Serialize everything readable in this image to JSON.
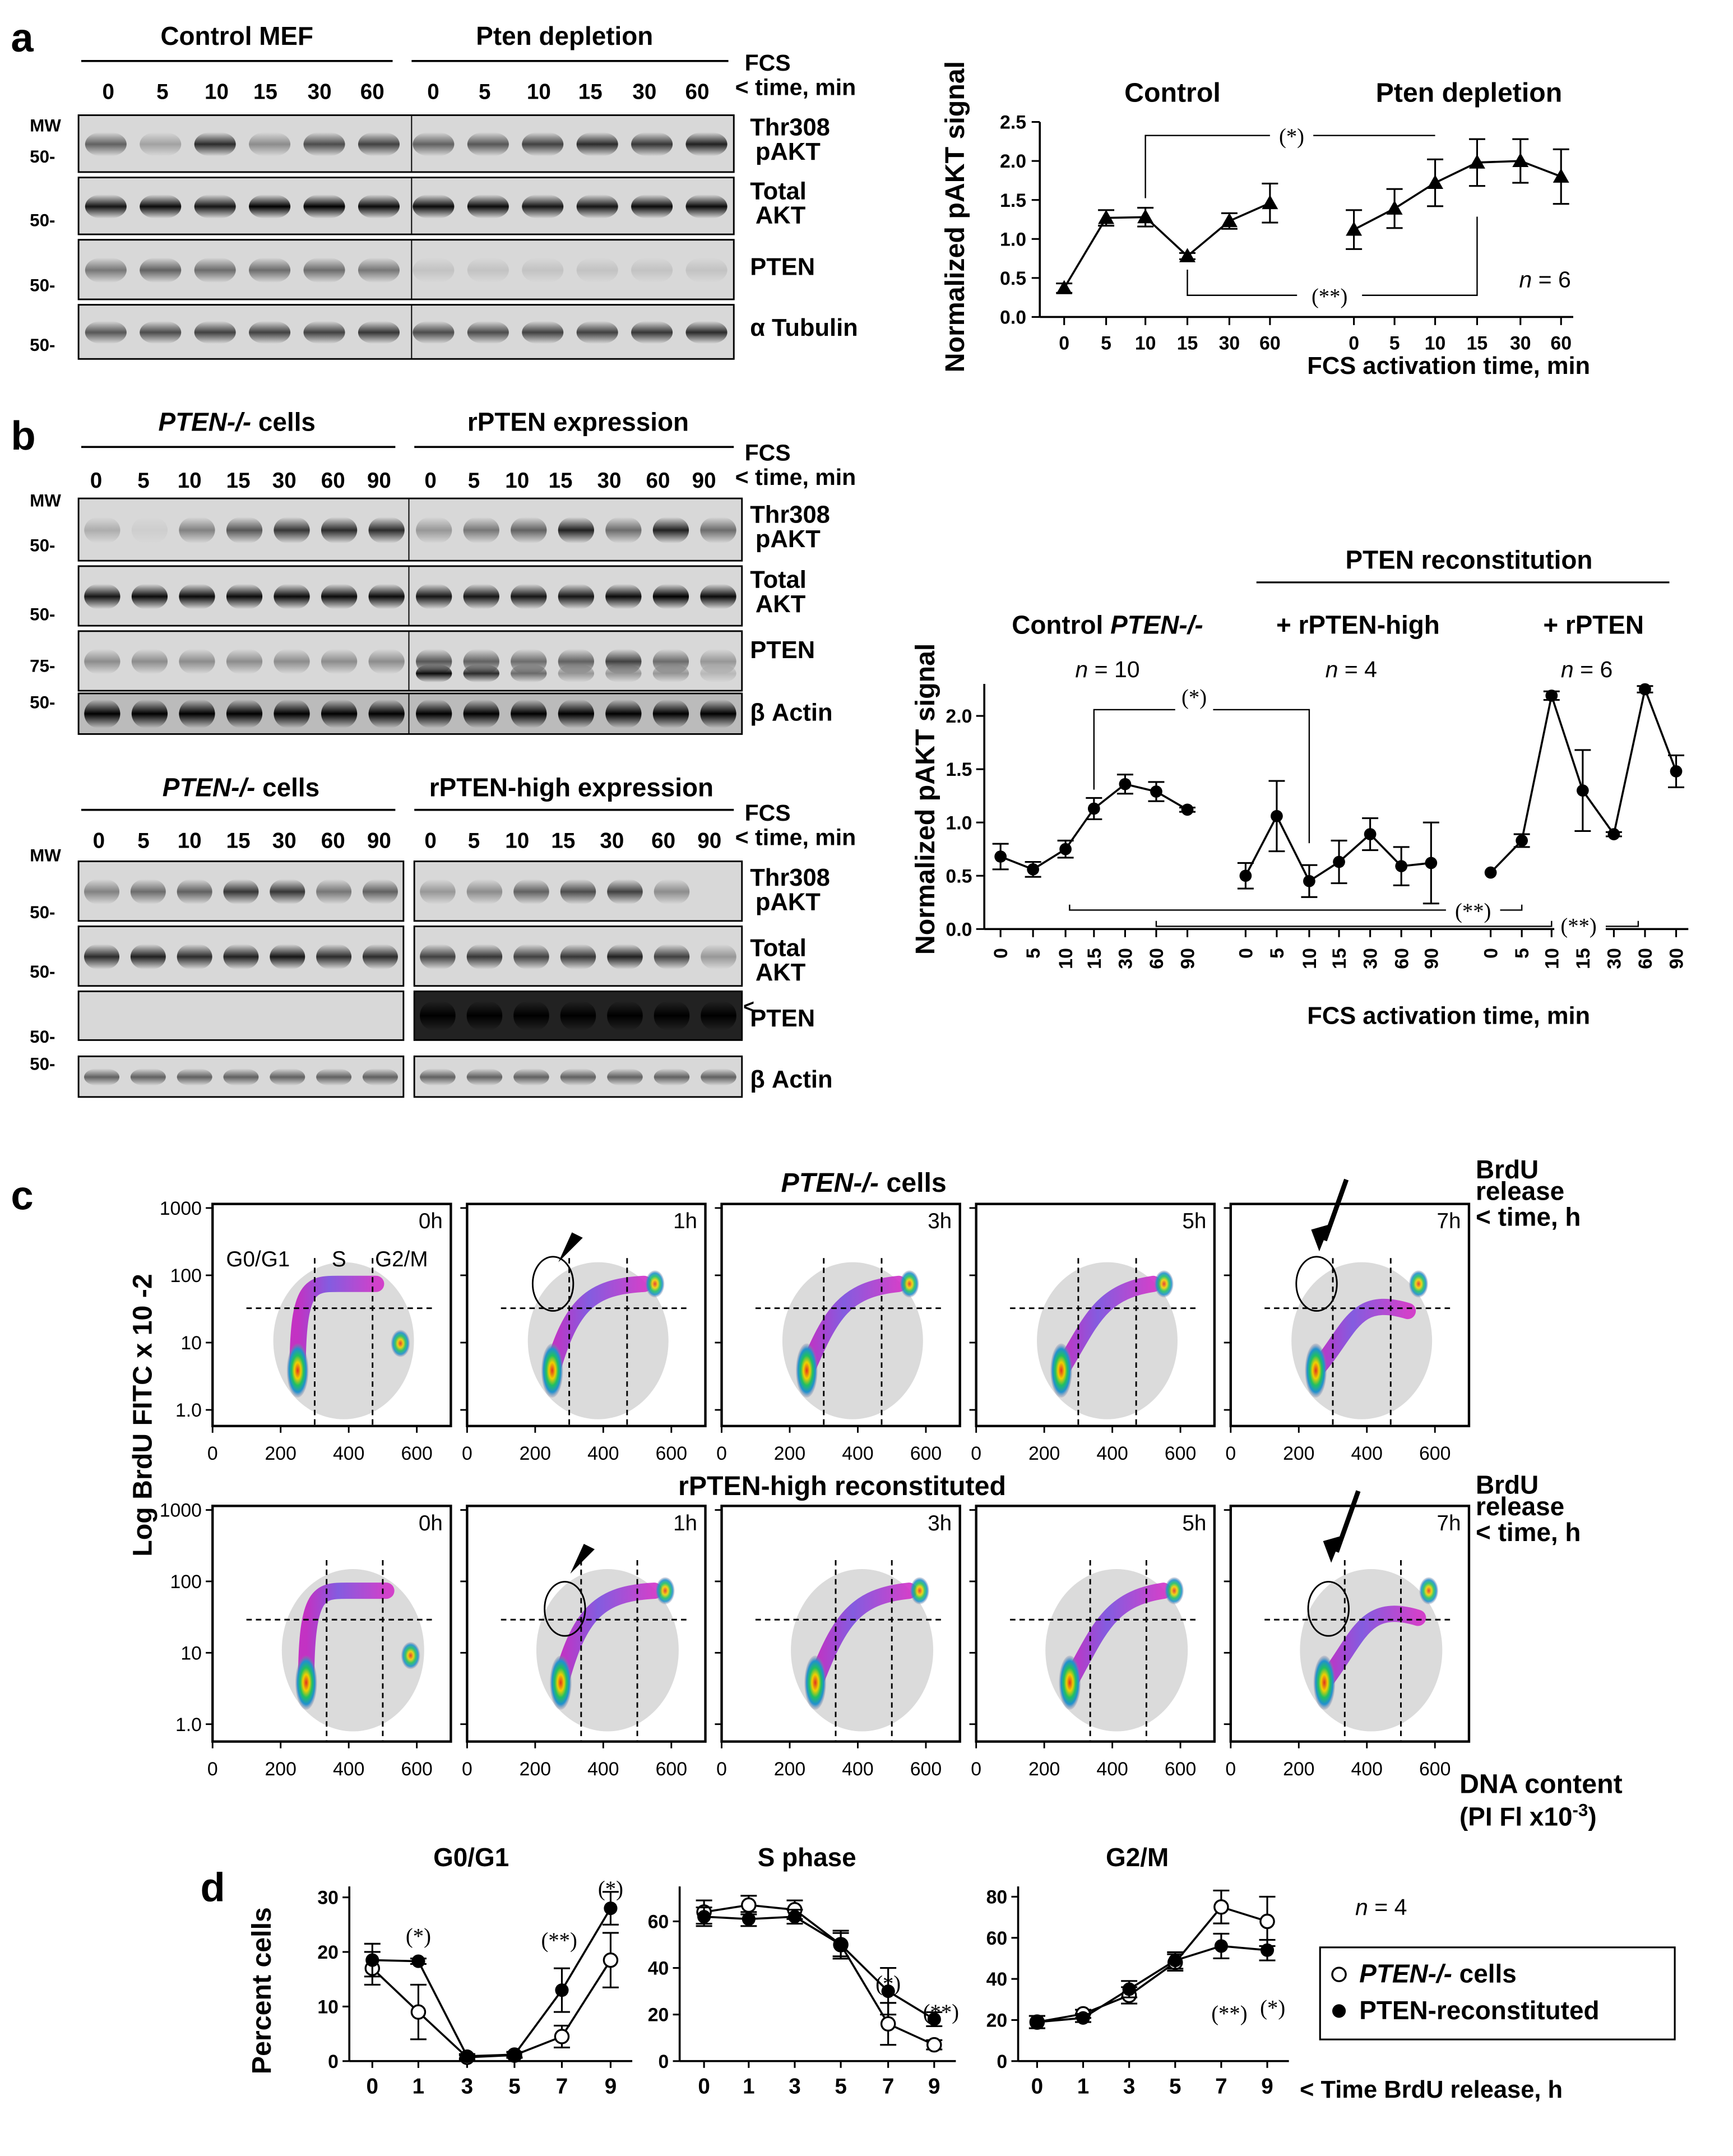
{
  "panel_letters": {
    "a": "a",
    "b": "b",
    "c": "c",
    "d": "d"
  },
  "common": {
    "fcs": "FCS",
    "time_min": "< time, min",
    "mw": "MW",
    "mw50": "50-",
    "mw75": "75-",
    "thr": "Thr308",
    "pakt": "pAKT",
    "total": "Total",
    "akt": "AKT",
    "pten": "PTEN",
    "tubulin": "α Tubulin",
    "actin": "β Actin",
    "arrowhead": "<",
    "t6": [
      "0",
      "5",
      "10",
      "15",
      "30",
      "60"
    ],
    "t7": [
      "0",
      "5",
      "10",
      "15",
      "30",
      "60",
      "90"
    ]
  },
  "panel_a": {
    "ctrl_header": "Control MEF",
    "pten_header": "Pten depletion"
  },
  "panel_b": {
    "blot1": {
      "left_header": "PTEN-/- cells",
      "right_header": "rPTEN  expression"
    },
    "blot2": {
      "left_header": "PTEN-/- cells",
      "right_header": "rPTEN-high expression"
    }
  },
  "chart_data": [
    {
      "id": "a-line",
      "type": "line",
      "title": "",
      "ylabel": "Normalized pAKT signal",
      "xlabel": "FCS activation time, min",
      "ylim": [
        0,
        2.5
      ],
      "yticks": [
        "0.0",
        "0.5",
        "1.0",
        "1.5",
        "2.0",
        "2.5"
      ],
      "group_labels": [
        "Control",
        "Pten depletion"
      ],
      "n_label": "n = 6",
      "significance": [
        "(*)",
        "(**)"
      ],
      "series": [
        {
          "name": "Control",
          "x": [
            "0",
            "5",
            "10",
            "15",
            "30",
            "60"
          ],
          "values": [
            0.37,
            1.27,
            1.28,
            0.78,
            1.23,
            1.46
          ],
          "errors": [
            0.06,
            0.1,
            0.12,
            0.04,
            0.1,
            0.25
          ]
        },
        {
          "name": "Pten depletion",
          "x": [
            "0",
            "5",
            "10",
            "15",
            "30",
            "60"
          ],
          "values": [
            1.12,
            1.39,
            1.72,
            1.98,
            2.0,
            1.8
          ],
          "errors": [
            0.25,
            0.25,
            0.3,
            0.3,
            0.28,
            0.35
          ]
        }
      ]
    },
    {
      "id": "b-line",
      "type": "line",
      "ylabel": "Normalized pAKT signal",
      "xlabel": "FCS activation time, min",
      "ylim": [
        0,
        2.3
      ],
      "yticks": [
        "0.0",
        "0.5",
        "1.0",
        "1.5",
        "2.0"
      ],
      "header": "PTEN reconstitution",
      "significance": [
        "(*)",
        "(**)",
        "(**)"
      ],
      "groups": [
        {
          "label": "Control PTEN-/-",
          "n": "n = 10",
          "x": [
            "0",
            "5",
            "10",
            "15",
            "30",
            "60",
            "90"
          ],
          "values": [
            0.68,
            0.56,
            0.75,
            1.13,
            1.36,
            1.29,
            1.12
          ],
          "errors": [
            0.12,
            0.07,
            0.08,
            0.1,
            0.09,
            0.09,
            0.02
          ]
        },
        {
          "label": "+ rPTEN-high",
          "n": "n = 4",
          "x": [
            "0",
            "5",
            "10",
            "15",
            "30",
            "60",
            "90"
          ],
          "values": [
            0.5,
            1.06,
            0.45,
            0.63,
            0.89,
            0.59,
            0.62
          ],
          "errors": [
            0.12,
            0.33,
            0.15,
            0.2,
            0.15,
            0.18,
            0.38
          ]
        },
        {
          "label": "+ rPTEN",
          "n": "n = 6",
          "x": [
            "0",
            "5",
            "10",
            "15",
            "30",
            "60",
            "90"
          ],
          "values": [
            0.53,
            0.83,
            2.19,
            1.3,
            0.89,
            2.25,
            1.48
          ],
          "errors": [
            0.0,
            0.06,
            0.04,
            0.38,
            0.02,
            0.03,
            0.15
          ]
        }
      ]
    },
    {
      "id": "c-flow",
      "type": "scatter",
      "row_titles": [
        "PTEN-/- cells",
        "rPTEN-high reconstituted"
      ],
      "ylabel": "Log BrdU FITC x 10 -2",
      "xlabel": "DNA content",
      "xlabel2": "(PI Fl x10-3)",
      "right_label": [
        "BrdU",
        "release",
        "< time, h"
      ],
      "gate_labels": [
        "G0/G1",
        "S",
        "G2/M"
      ],
      "timepoints": [
        "0h",
        "1h",
        "3h",
        "5h",
        "7h"
      ],
      "x_ticks": [
        "0",
        "200",
        "400",
        "600"
      ],
      "y_ticks": [
        "1000",
        "100",
        "10",
        "1.0"
      ],
      "xlim": [
        0,
        700
      ],
      "gates": {
        "row1": [
          300,
          470
        ],
        "row2": [
          335,
          500
        ]
      }
    },
    {
      "id": "d-g0g1",
      "type": "line",
      "title": "G0/G1",
      "ylabel": "Percent cells",
      "x": [
        "0",
        "1",
        "3",
        "5",
        "7",
        "9"
      ],
      "ylim": [
        0,
        32
      ],
      "yticks": [
        "0",
        "10",
        "20",
        "30"
      ],
      "annotations": [
        "(*)",
        "(**)",
        "(*)"
      ],
      "series": [
        {
          "name": "PTEN-/- cells",
          "values": [
            17,
            9,
            0.7,
            1.1,
            4.5,
            18.5
          ],
          "errors": [
            3,
            5,
            0.4,
            0.5,
            2,
            5
          ]
        },
        {
          "name": "PTEN-reconstituted",
          "values": [
            18.5,
            18.3,
            0.9,
            1.2,
            13,
            28
          ],
          "errors": [
            3,
            0.5,
            0.4,
            0.5,
            4,
            3
          ]
        }
      ]
    },
    {
      "id": "d-s",
      "type": "line",
      "title": "S phase",
      "x": [
        "0",
        "1",
        "3",
        "5",
        "7",
        "9"
      ],
      "ylim": [
        0,
        75
      ],
      "yticks": [
        "0",
        "20",
        "40",
        "60"
      ],
      "annotations": [
        "(*)",
        "(**)"
      ],
      "series": [
        {
          "name": "PTEN-/- cells",
          "values": [
            64,
            67,
            65,
            50,
            16,
            7
          ],
          "errors": [
            5,
            4,
            4,
            5,
            9,
            2
          ]
        },
        {
          "name": "PTEN-reconstituted",
          "values": [
            62,
            61,
            62,
            50,
            30,
            18
          ],
          "errors": [
            4,
            3,
            3,
            6,
            10,
            3
          ]
        }
      ]
    },
    {
      "id": "d-g2m",
      "type": "line",
      "title": "G2/M",
      "x": [
        "0",
        "1",
        "3",
        "5",
        "7",
        "9"
      ],
      "ylim": [
        0,
        85
      ],
      "yticks": [
        "0",
        "20",
        "40",
        "60",
        "80"
      ],
      "annotations": [
        "(**)",
        "(*)"
      ],
      "series": [
        {
          "name": "PTEN-/- cells",
          "values": [
            19,
            23,
            32,
            48,
            75,
            68
          ],
          "errors": [
            3,
            2,
            4,
            4,
            8,
            12
          ]
        },
        {
          "name": "PTEN-reconstituted",
          "values": [
            19,
            21,
            35,
            49,
            56,
            54
          ],
          "errors": [
            3,
            2,
            4,
            4,
            6,
            5
          ]
        }
      ]
    }
  ],
  "panel_d": {
    "n_label": "n = 4",
    "xlabel": "< Time BrdU release, h",
    "legend": [
      "PTEN-/- cells",
      "PTEN-reconstituted"
    ]
  }
}
